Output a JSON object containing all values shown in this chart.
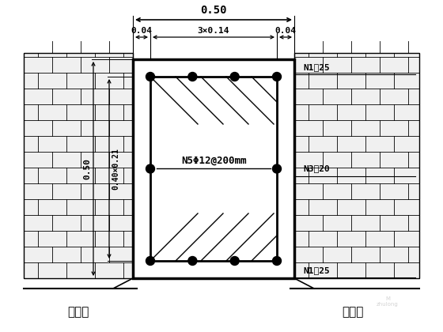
{
  "bg_color": "#ffffff",
  "line_color": "#000000",
  "dim_top_text": "0.50",
  "dim_sub_left": "0.04",
  "dim_sub_mid": "3×0.14",
  "dim_sub_right": "0.04",
  "left_dim_outer": "0.50",
  "left_dim_inner": "0.40×0.21",
  "center_label": "N5Φ12@200mm",
  "right_labels": [
    "N1①25",
    "N3①20",
    "N1①25"
  ],
  "bottom_left_text": "挡土墙",
  "bottom_right_text": "挡土墙"
}
